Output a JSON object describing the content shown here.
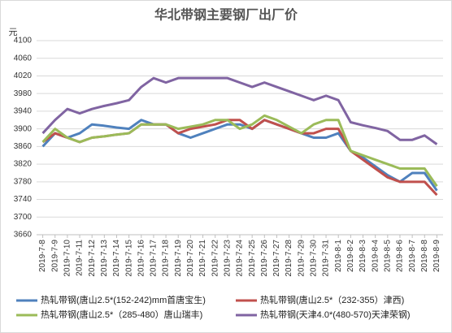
{
  "chart_data": {
    "type": "line",
    "title": "华北带钢主要钢厂出厂价",
    "y_label": "元",
    "categories": [
      "2019-7-8",
      "2019-7-9",
      "2019-7-10",
      "2019-7-11",
      "2019-7-12",
      "2019-7-13",
      "2019-7-14",
      "2019-7-15",
      "2019-7-16",
      "2019-7-17",
      "2019-7-18",
      "2019-7-19",
      "2019-7-20",
      "2019-7-21",
      "2019-7-22",
      "2019-7-23",
      "2019-7-24",
      "2019-7-25",
      "2019-7-26",
      "2019-7-27",
      "2019-7-28",
      "2019-7-29",
      "2019-7-30",
      "2019-7-31",
      "2019-8-1",
      "2019-8-2",
      "2019-8-3",
      "2019-8-4",
      "2019-8-5",
      "2019-8-6",
      "2019-8-7",
      "2019-8-8",
      "2019-8-9"
    ],
    "series": [
      {
        "name": "热轧带钢(唐山2.5*(152-242)mm首唐宝生)",
        "color": "#4f81bd",
        "values": [
          3860,
          3890,
          3880,
          3890,
          3910,
          3907,
          3903,
          3900,
          3920,
          3910,
          3910,
          3890,
          3880,
          3890,
          3900,
          3910,
          3910,
          3900,
          3920,
          3910,
          3900,
          3890,
          3880,
          3880,
          3890,
          3850,
          3835,
          3815,
          3795,
          3780,
          3800,
          3800,
          3760
        ]
      },
      {
        "name": "热轧带钢(唐山2.5*（232-355）津西)",
        "color": "#c0504d",
        "values": [
          3870,
          3890,
          3880,
          3870,
          3880,
          3883,
          3887,
          3890,
          3910,
          3910,
          3910,
          3890,
          3900,
          3905,
          3910,
          3920,
          3920,
          3900,
          3920,
          3910,
          3900,
          3890,
          3890,
          3900,
          3900,
          3850,
          3830,
          3810,
          3790,
          3780,
          3780,
          3780,
          3750
        ]
      },
      {
        "name": "热轧带钢(唐山2.5*（285-480）唐山瑞丰)",
        "color": "#9bbb59",
        "values": [
          3870,
          3900,
          3880,
          3870,
          3880,
          3883,
          3887,
          3890,
          3910,
          3910,
          3910,
          3900,
          3905,
          3910,
          3920,
          3920,
          3900,
          3910,
          3930,
          3920,
          3905,
          3890,
          3910,
          3920,
          3920,
          3850,
          3840,
          3830,
          3820,
          3810,
          3810,
          3810,
          3770
        ]
      },
      {
        "name": "热轧带钢(天津4.0*(480-570)天津荣钢)",
        "color": "#8064a2",
        "values": [
          3890,
          3920,
          3945,
          3935,
          3945,
          3952,
          3958,
          3965,
          3995,
          4015,
          4005,
          4015,
          4015,
          4015,
          4015,
          4015,
          4005,
          3995,
          4005,
          3995,
          3985,
          3975,
          3965,
          3975,
          3965,
          3915,
          3908,
          3902,
          3895,
          3875,
          3875,
          3885,
          3865
        ]
      }
    ],
    "ylim": [
      3660,
      4100
    ],
    "yticks": [
      3660,
      3700,
      3740,
      3780,
      3820,
      3860,
      3900,
      3940,
      3980,
      4020,
      4060,
      4100
    ],
    "grid": true,
    "legend": "bottom"
  }
}
